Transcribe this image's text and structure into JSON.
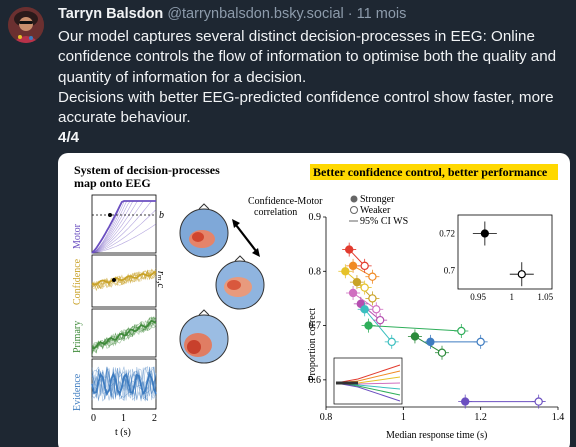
{
  "post": {
    "author_name": "Tarryn Balsdon",
    "handle": "@tarrynbalsdon.bsky.social",
    "separator": "·",
    "time": "11 mois",
    "paragraph1": "Our model captures several distinct decision-processes in EEG: Online confidence controls the flow of information to optimise both the quality and quantity of information for a decision.",
    "paragraph2": "Decisions with better EEG-predicted confidence control show faster, more accurate behaviour.",
    "paragraph3": "4/4"
  },
  "figure": {
    "left_panel": {
      "title_line1": "System of decision-processes",
      "title_line2": "map onto EEG",
      "row_labels": [
        "Motor",
        "Confidence",
        "Primary",
        "Evidence"
      ],
      "row_colors": [
        "#6b4fc0",
        "#c9a227",
        "#3f8a3a",
        "#3e7cc0"
      ],
      "x_ticks": [
        "0",
        "1",
        "2"
      ],
      "x_label": "t (s)",
      "b_label": "b",
      "annotation_line1": "Confidence-Motor",
      "annotation_line2": "correlation",
      "side_label": "rₘ,c"
    },
    "right_panel": {
      "title": "Better confidence control, better performance",
      "legend": [
        "Stronger",
        "Weaker",
        "95% CI WS"
      ],
      "y_label": "Proportion correct",
      "x_label": "Median response time (s)",
      "inset": {
        "y_ticks": [
          "0.72",
          "0.7"
        ],
        "x_ticks": [
          "0.95",
          "1",
          "1.05"
        ]
      }
    }
  },
  "chart_data": {
    "type": "scatter",
    "title": "Better confidence control, better performance",
    "xlabel": "Median response time (s)",
    "ylabel": "Proportion correct",
    "xlim": [
      0.8,
      1.4
    ],
    "ylim": [
      0.55,
      0.9
    ],
    "x_ticks": [
      0.8,
      1,
      1.2,
      1.4
    ],
    "y_ticks": [
      0.6,
      0.7,
      0.8,
      0.9
    ],
    "series": [
      {
        "name": "Stronger",
        "filled": true,
        "points": [
          {
            "x": 0.86,
            "y": 0.84,
            "color": "#e23b2e"
          },
          {
            "x": 0.87,
            "y": 0.81,
            "color": "#f08a24"
          },
          {
            "x": 0.85,
            "y": 0.8,
            "color": "#e6c229"
          },
          {
            "x": 0.88,
            "y": 0.78,
            "color": "#c9a227"
          },
          {
            "x": 0.87,
            "y": 0.76,
            "color": "#d06fc0"
          },
          {
            "x": 0.89,
            "y": 0.74,
            "color": "#b44fb0"
          },
          {
            "x": 0.9,
            "y": 0.73,
            "color": "#3bbfbf"
          },
          {
            "x": 0.91,
            "y": 0.7,
            "color": "#2fae5a"
          },
          {
            "x": 1.03,
            "y": 0.68,
            "color": "#2b8a3a"
          },
          {
            "x": 1.07,
            "y": 0.67,
            "color": "#3e7cc0"
          },
          {
            "x": 1.16,
            "y": 0.56,
            "color": "#6b4fc0"
          }
        ]
      },
      {
        "name": "Weaker",
        "filled": false,
        "points": [
          {
            "x": 0.9,
            "y": 0.81,
            "color": "#e23b2e"
          },
          {
            "x": 0.92,
            "y": 0.79,
            "color": "#f08a24"
          },
          {
            "x": 0.9,
            "y": 0.77,
            "color": "#e6c229"
          },
          {
            "x": 0.92,
            "y": 0.75,
            "color": "#c9a227"
          },
          {
            "x": 0.93,
            "y": 0.73,
            "color": "#d06fc0"
          },
          {
            "x": 0.94,
            "y": 0.71,
            "color": "#b44fb0"
          },
          {
            "x": 0.97,
            "y": 0.67,
            "color": "#3bbfbf"
          },
          {
            "x": 1.15,
            "y": 0.69,
            "color": "#2fae5a"
          },
          {
            "x": 1.1,
            "y": 0.65,
            "color": "#2b8a3a"
          },
          {
            "x": 1.2,
            "y": 0.67,
            "color": "#3e7cc0"
          },
          {
            "x": 1.35,
            "y": 0.56,
            "color": "#6b4fc0"
          }
        ]
      }
    ],
    "inset": {
      "xlim": [
        0.92,
        1.06
      ],
      "ylim": [
        0.69,
        0.73
      ],
      "points": [
        {
          "x": 0.96,
          "y": 0.72,
          "filled": true
        },
        {
          "x": 1.015,
          "y": 0.698,
          "filled": false
        }
      ]
    }
  }
}
